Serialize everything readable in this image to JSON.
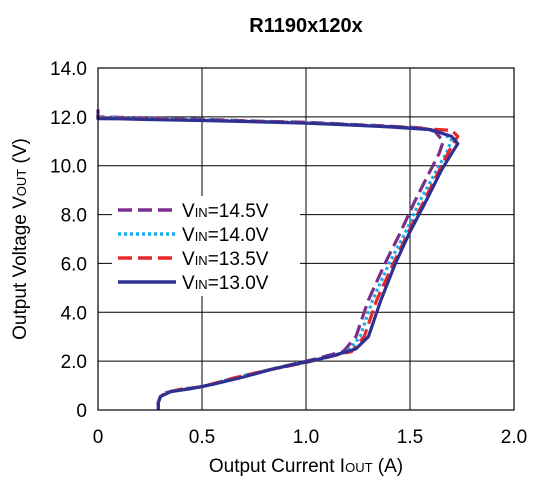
{
  "chart_data": {
    "type": "line",
    "title": "R1190x120x",
    "xlabel": {
      "prefix": "Output Current I",
      "sub": "OUT",
      "suffix": " (A)"
    },
    "ylabel": {
      "prefix": "Output Voltage V",
      "sub": "OUT",
      "suffix": " (V)"
    },
    "xlim": [
      0,
      2.0
    ],
    "ylim": [
      0,
      14.0
    ],
    "x_ticks": [
      {
        "value": 0,
        "label": "0"
      },
      {
        "value": 0.5,
        "label": "0.5"
      },
      {
        "value": 1.0,
        "label": "1.0"
      },
      {
        "value": 1.5,
        "label": "1.5"
      },
      {
        "value": 2.0,
        "label": "2.0"
      }
    ],
    "y_ticks": [
      {
        "value": 0,
        "label": "0"
      },
      {
        "value": 2,
        "label": "2.0"
      },
      {
        "value": 4,
        "label": "4.0"
      },
      {
        "value": 6,
        "label": "6.0"
      },
      {
        "value": 8,
        "label": "8.0"
      },
      {
        "value": 10,
        "label": "10.0"
      },
      {
        "value": 12,
        "label": "12.0"
      },
      {
        "value": 14,
        "label": "14.0"
      }
    ],
    "grid": true,
    "legend_position": "left-middle",
    "series": [
      {
        "id": "vin-14-5",
        "name_prefix": "V",
        "name_sub": "IN",
        "name_suffix": "=14.5V",
        "color": "#7B2E8E",
        "style": "dashed",
        "points": [
          [
            0,
            12.3
          ],
          [
            0,
            12.0
          ],
          [
            0.1,
            11.98
          ],
          [
            0.3,
            11.94
          ],
          [
            0.5,
            11.9
          ],
          [
            0.8,
            11.82
          ],
          [
            1.0,
            11.78
          ],
          [
            1.2,
            11.7
          ],
          [
            1.4,
            11.62
          ],
          [
            1.55,
            11.55
          ],
          [
            1.62,
            11.4
          ],
          [
            1.66,
            11.0
          ],
          [
            1.64,
            10.5
          ],
          [
            1.58,
            9.5
          ],
          [
            1.52,
            8.5
          ],
          [
            1.45,
            7.2
          ],
          [
            1.38,
            6.0
          ],
          [
            1.3,
            4.5
          ],
          [
            1.24,
            3.0
          ],
          [
            1.18,
            2.4
          ],
          [
            1.05,
            2.1
          ],
          [
            0.95,
            1.9
          ],
          [
            0.8,
            1.6
          ],
          [
            0.65,
            1.3
          ],
          [
            0.5,
            0.95
          ],
          [
            0.4,
            0.85
          ],
          [
            0.33,
            0.72
          ],
          [
            0.3,
            0.55
          ],
          [
            0.29,
            0.3
          ],
          [
            0.29,
            0.05
          ]
        ]
      },
      {
        "id": "vin-14-0",
        "name_prefix": "V",
        "name_sub": "IN",
        "name_suffix": "=14.0V",
        "color": "#1AAEE8",
        "style": "dotted",
        "points": [
          [
            0,
            12.15
          ],
          [
            0,
            11.97
          ],
          [
            0.1,
            11.96
          ],
          [
            0.3,
            11.92
          ],
          [
            0.5,
            11.88
          ],
          [
            0.8,
            11.81
          ],
          [
            1.0,
            11.76
          ],
          [
            1.2,
            11.69
          ],
          [
            1.4,
            11.61
          ],
          [
            1.57,
            11.52
          ],
          [
            1.65,
            11.35
          ],
          [
            1.7,
            11.1
          ],
          [
            1.68,
            10.6
          ],
          [
            1.62,
            9.7
          ],
          [
            1.55,
            8.6
          ],
          [
            1.48,
            7.3
          ],
          [
            1.4,
            6.0
          ],
          [
            1.32,
            4.5
          ],
          [
            1.26,
            3.0
          ],
          [
            1.2,
            2.4
          ],
          [
            1.08,
            2.1
          ],
          [
            0.97,
            1.9
          ],
          [
            0.8,
            1.6
          ],
          [
            0.65,
            1.3
          ],
          [
            0.5,
            0.95
          ],
          [
            0.4,
            0.85
          ],
          [
            0.33,
            0.72
          ],
          [
            0.3,
            0.55
          ],
          [
            0.29,
            0.3
          ],
          [
            0.29,
            0.05
          ]
        ]
      },
      {
        "id": "vin-13-5",
        "name_prefix": "V",
        "name_sub": "IN",
        "name_suffix": "=13.5V",
        "color": "#E8262A",
        "style": "dashed",
        "points": [
          [
            0,
            12.1
          ],
          [
            0,
            11.95
          ],
          [
            0.1,
            11.94
          ],
          [
            0.3,
            11.9
          ],
          [
            0.5,
            11.86
          ],
          [
            0.8,
            11.8
          ],
          [
            1.0,
            11.75
          ],
          [
            1.2,
            11.68
          ],
          [
            1.4,
            11.6
          ],
          [
            1.6,
            11.5
          ],
          [
            1.7,
            11.45
          ],
          [
            1.73,
            11.2
          ],
          [
            1.7,
            10.8
          ],
          [
            1.64,
            9.8
          ],
          [
            1.57,
            8.6
          ],
          [
            1.5,
            7.4
          ],
          [
            1.42,
            6.0
          ],
          [
            1.34,
            4.5
          ],
          [
            1.28,
            3.0
          ],
          [
            1.22,
            2.4
          ],
          [
            1.1,
            2.15
          ],
          [
            1.0,
            1.95
          ],
          [
            0.8,
            1.6
          ],
          [
            0.65,
            1.3
          ],
          [
            0.5,
            0.95
          ],
          [
            0.4,
            0.85
          ],
          [
            0.33,
            0.72
          ],
          [
            0.3,
            0.55
          ],
          [
            0.29,
            0.3
          ],
          [
            0.29,
            0.05
          ]
        ]
      },
      {
        "id": "vin-13-0",
        "name_prefix": "V",
        "name_sub": "IN",
        "name_suffix": "=13.0V",
        "color": "#2E3192",
        "style": "solid",
        "points": [
          [
            0,
            12.05
          ],
          [
            0,
            11.93
          ],
          [
            0.1,
            11.92
          ],
          [
            0.3,
            11.88
          ],
          [
            0.5,
            11.85
          ],
          [
            0.8,
            11.79
          ],
          [
            1.0,
            11.74
          ],
          [
            1.2,
            11.67
          ],
          [
            1.4,
            11.59
          ],
          [
            1.6,
            11.48
          ],
          [
            1.7,
            11.2
          ],
          [
            1.73,
            10.9
          ],
          [
            1.7,
            10.5
          ],
          [
            1.65,
            9.8
          ],
          [
            1.58,
            8.6
          ],
          [
            1.5,
            7.3
          ],
          [
            1.43,
            6.0
          ],
          [
            1.36,
            4.5
          ],
          [
            1.3,
            3.0
          ],
          [
            1.24,
            2.5
          ],
          [
            1.12,
            2.2
          ],
          [
            1.02,
            2.0
          ],
          [
            0.85,
            1.7
          ],
          [
            0.7,
            1.35
          ],
          [
            0.55,
            1.05
          ],
          [
            0.45,
            0.88
          ],
          [
            0.35,
            0.75
          ],
          [
            0.3,
            0.55
          ],
          [
            0.29,
            0.3
          ],
          [
            0.29,
            0.02
          ]
        ]
      }
    ]
  }
}
